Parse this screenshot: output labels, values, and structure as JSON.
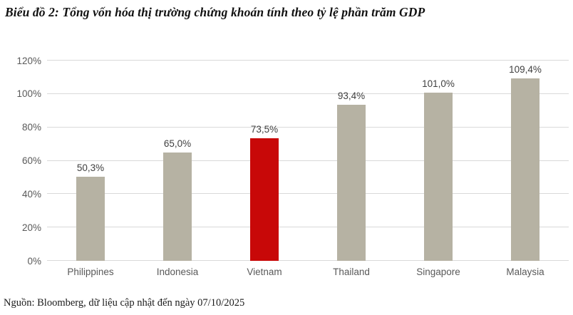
{
  "page": {
    "title": "Biểu đồ 2: Tổng vốn hóa thị trường chứng khoán tính theo tỷ lệ phần trăm GDP",
    "source": "Nguồn: Bloomberg, dữ liệu cập nhật đến ngày 07/10/2025"
  },
  "colors": {
    "bar_default": "#B6B2A3",
    "bar_highlight": "#C80808",
    "gridline": "#D9D9D9",
    "axis_text": "#595959",
    "value_text": "#404040"
  },
  "chart_data": {
    "type": "bar",
    "title": "Biểu đồ 2: Tổng vốn hóa thị trường chứng khoán tính theo tỷ lệ phần trăm GDP",
    "categories": [
      "Philippines",
      "Indonesia",
      "Vietnam",
      "Thailand",
      "Singapore",
      "Malaysia"
    ],
    "values": [
      50.3,
      65.0,
      73.5,
      93.4,
      101.0,
      109.4
    ],
    "value_labels": [
      "50,3%",
      "65,0%",
      "73,5%",
      "93,4%",
      "101,0%",
      "109,4%"
    ],
    "highlight_index": 2,
    "highlight_category": "Vietnam",
    "xlabel": "",
    "ylabel": "",
    "ylim": [
      0,
      120
    ],
    "ytick_values": [
      0,
      20,
      40,
      60,
      80,
      100,
      120
    ],
    "ytick_labels": [
      "0%",
      "20%",
      "40%",
      "60%",
      "80%",
      "100%",
      "120%"
    ],
    "grid": true,
    "legend": "none",
    "source": "Nguồn: Bloomberg, dữ liệu cập nhật đến ngày 07/10/2025"
  }
}
